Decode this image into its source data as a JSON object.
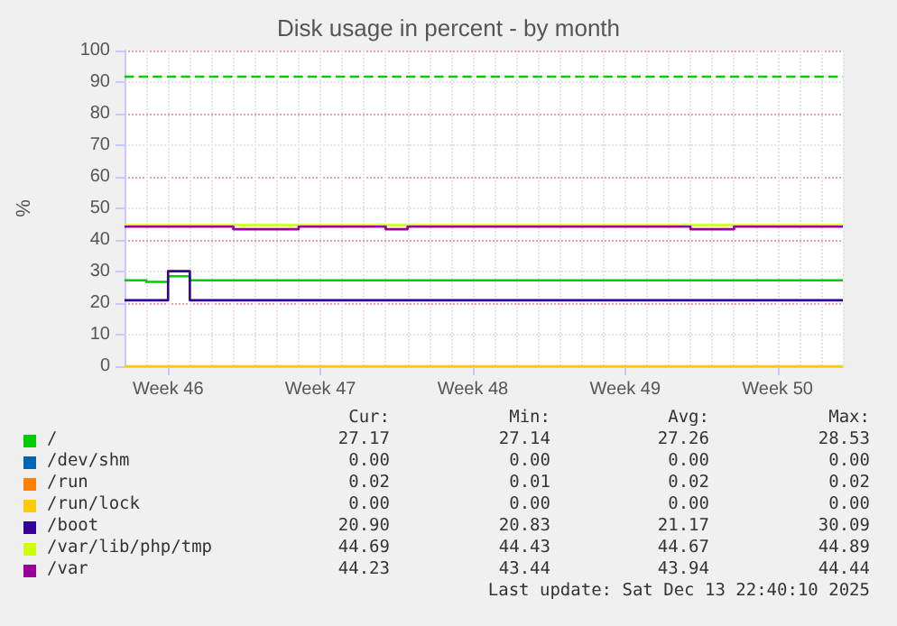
{
  "chart_data": {
    "type": "step",
    "title": "Disk usage in percent - by month",
    "ylabel": "%",
    "categories": [
      null,
      null,
      "Week 46",
      null,
      null,
      null,
      null,
      null,
      null,
      "Week 47",
      null,
      null,
      null,
      null,
      null,
      null,
      "Week 48",
      null,
      null,
      null,
      null,
      null,
      null,
      "Week 49",
      null,
      null,
      null,
      null,
      null,
      null,
      "Week 50",
      null,
      null,
      null
    ],
    "ylim": [
      0,
      100
    ],
    "yticks": [
      0,
      10,
      20,
      30,
      40,
      50,
      60,
      70,
      80,
      90,
      100
    ],
    "grid": true,
    "legend": "bottom",
    "marker": "none",
    "line_style": "solid",
    "ref_lines": [
      {
        "axis": "y",
        "value": 92,
        "color": "#00cc00",
        "line_style": "dashed"
      }
    ],
    "series": [
      {
        "name": "/",
        "color": "#00cc00",
        "values": [
          27.2,
          26.7,
          28.5,
          27.2,
          27.2,
          27.2,
          27.2,
          27.2,
          27.2,
          27.2,
          27.2,
          27.2,
          27.2,
          27.2,
          27.2,
          27.2,
          27.2,
          27.2,
          27.2,
          27.2,
          27.2,
          27.2,
          27.2,
          27.2,
          27.2,
          27.2,
          27.2,
          27.2,
          27.2,
          27.2,
          27.2,
          27.2,
          27.2,
          27.2
        ]
      },
      {
        "name": "/dev/shm",
        "color": "#0066b3",
        "values": [
          null,
          null,
          null,
          null,
          null,
          null,
          null,
          null,
          null,
          null,
          null,
          null,
          null,
          null,
          null,
          null,
          null,
          null,
          null,
          null,
          null,
          null,
          null,
          null,
          null,
          null,
          null,
          null,
          null,
          null,
          null,
          null,
          null,
          null
        ]
      },
      {
        "name": "/run",
        "color": "#ff8000",
        "values": [
          null,
          null,
          null,
          null,
          null,
          null,
          null,
          null,
          null,
          null,
          null,
          null,
          null,
          null,
          null,
          null,
          null,
          null,
          null,
          null,
          null,
          null,
          null,
          null,
          null,
          null,
          null,
          null,
          null,
          null,
          null,
          null,
          null,
          null
        ]
      },
      {
        "name": "/run/lock",
        "color": "#ffcc00",
        "values": [
          0,
          0,
          0,
          0,
          0,
          0,
          0,
          0,
          0,
          0,
          0,
          0,
          0,
          0,
          0,
          0,
          0,
          0,
          0,
          0,
          0,
          0,
          0,
          0,
          0,
          0,
          0,
          0,
          0,
          0,
          0,
          0,
          0,
          0
        ]
      },
      {
        "name": "/boot",
        "color": "#330099",
        "values": [
          20.9,
          20.9,
          30.1,
          20.9,
          20.9,
          20.9,
          20.9,
          20.9,
          20.9,
          20.9,
          20.9,
          20.9,
          20.9,
          20.9,
          20.9,
          20.9,
          20.9,
          20.9,
          20.9,
          20.9,
          20.9,
          20.9,
          20.9,
          20.9,
          20.9,
          20.9,
          20.9,
          20.9,
          20.9,
          20.9,
          20.9,
          20.9,
          20.9,
          20.9
        ]
      },
      {
        "name": "/var/lib/php/tmp",
        "color": "#ccff00",
        "values": [
          44.7,
          44.7,
          44.7,
          44.7,
          44.7,
          44.7,
          44.7,
          44.7,
          44.7,
          44.7,
          44.7,
          44.7,
          44.7,
          44.7,
          44.7,
          44.7,
          44.7,
          44.7,
          44.7,
          44.7,
          44.7,
          44.7,
          44.7,
          44.7,
          44.7,
          44.7,
          44.7,
          44.7,
          44.7,
          44.7,
          44.7,
          44.7,
          44.7,
          44.7
        ]
      },
      {
        "name": "/var",
        "color": "#990099",
        "values": [
          44.2,
          44.2,
          44.2,
          44.2,
          44.2,
          43.4,
          43.4,
          43.4,
          44.2,
          44.2,
          44.2,
          44.2,
          43.4,
          44.2,
          44.2,
          44.2,
          44.2,
          44.2,
          44.2,
          44.2,
          44.2,
          44.2,
          44.2,
          44.2,
          44.2,
          44.2,
          43.4,
          43.4,
          44.2,
          44.2,
          44.2,
          44.2,
          44.2,
          44.2
        ]
      }
    ],
    "annotations": [
      "Cur:",
      "Min:",
      "Avg:",
      "Max:",
      "27.17",
      "27.14",
      "27.26",
      "28.53",
      "0.00",
      "0.00",
      "0.00",
      "0.00",
      "0.02",
      "0.01",
      "0.02",
      "0.02",
      "0.00",
      "0.00",
      "0.00",
      "0.00",
      "20.90",
      "20.83",
      "21.17",
      "30.09",
      "44.69",
      "44.43",
      "44.67",
      "44.89",
      "44.23",
      "43.44",
      "43.94",
      "44.44",
      "Last update: Sat Dec 13 22:40:10 2025"
    ]
  }
}
